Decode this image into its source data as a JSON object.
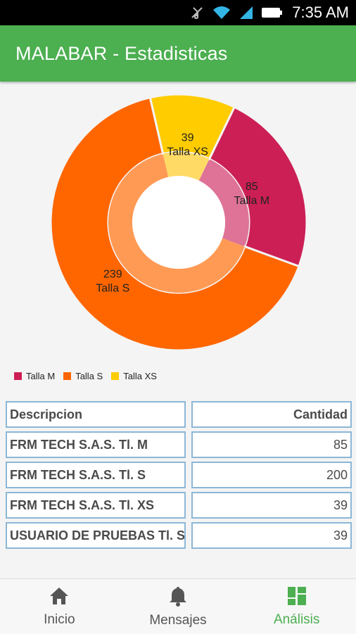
{
  "status_bar": {
    "time": "7:35 AM"
  },
  "app_bar": {
    "title": "MALABAR - Estadisticas"
  },
  "chart_data": {
    "type": "pie",
    "categories": [
      "Talla M",
      "Talla S",
      "Talla XS"
    ],
    "values": [
      85,
      239,
      39
    ],
    "colors": [
      "#cc1f56",
      "#ff6600",
      "#ffcc00"
    ],
    "inner_colors": [
      "#de7397",
      "#ff9a55",
      "#ffdb66"
    ],
    "legend": "bottom-left"
  },
  "table": {
    "headers": {
      "description": "Descripcion",
      "quantity": "Cantidad"
    },
    "rows": [
      {
        "description": "FRM TECH S.A.S. Tl. M",
        "quantity": "85"
      },
      {
        "description": "FRM TECH S.A.S. Tl. S",
        "quantity": "200"
      },
      {
        "description": "FRM TECH S.A.S. Tl. XS",
        "quantity": "39"
      },
      {
        "description": "USUARIO DE PRUEBAS Tl. S",
        "quantity": "39"
      }
    ]
  },
  "bottom_nav": {
    "items": [
      {
        "label": "Inicio",
        "icon": "home-icon",
        "active": false
      },
      {
        "label": "Mensajes",
        "icon": "bell-icon",
        "active": false
      },
      {
        "label": "Análisis",
        "icon": "dashboard-icon",
        "active": true
      }
    ]
  },
  "colors": {
    "primary": "#4caf50",
    "table_border": "#8cb7d6"
  }
}
